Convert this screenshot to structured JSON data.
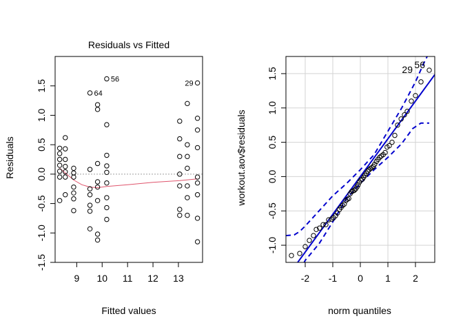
{
  "colors": {
    "points": "#000000",
    "smoother": "#DF536B",
    "zero_line": "#9E9E9E",
    "qq_line": "#0000CD",
    "qq_band": "#0000CD",
    "grid": "#D3D3D3"
  },
  "chart_data": [
    {
      "type": "scatter",
      "title": "Residuals vs Fitted",
      "xlabel": "Fitted values",
      "ylabel": "Residuals",
      "xlim": [
        8.15,
        13.95
      ],
      "ylim": [
        -1.5,
        2.0
      ],
      "x_ticks": [
        "9",
        "10",
        "11",
        "12",
        "13"
      ],
      "x_tick_values": [
        9,
        10,
        11,
        12,
        13
      ],
      "y_ticks": [
        "-1.5",
        "-1.0",
        "-0.5",
        "0.0",
        "0.5",
        "1.0",
        "1.5"
      ],
      "y_tick_values": [
        -1.5,
        -1.0,
        -0.5,
        0.0,
        0.5,
        1.0,
        1.5
      ],
      "zero_line": 0,
      "points": [
        [
          8.33,
          0.44
        ],
        [
          8.33,
          0.35
        ],
        [
          8.33,
          0.25
        ],
        [
          8.33,
          0.15
        ],
        [
          8.33,
          0.05
        ],
        [
          8.33,
          -0.05
        ],
        [
          8.33,
          -0.45
        ],
        [
          8.55,
          0.62
        ],
        [
          8.55,
          0.43
        ],
        [
          8.55,
          0.25
        ],
        [
          8.55,
          0.13
        ],
        [
          8.55,
          0.04
        ],
        [
          8.55,
          -0.05
        ],
        [
          8.55,
          -0.35
        ],
        [
          8.88,
          0.1
        ],
        [
          8.88,
          0.02
        ],
        [
          8.88,
          -0.05
        ],
        [
          8.88,
          -0.22
        ],
        [
          8.88,
          -0.32
        ],
        [
          8.88,
          -0.42
        ],
        [
          8.88,
          -0.62
        ],
        [
          9.52,
          1.38
        ],
        [
          9.52,
          0.08
        ],
        [
          9.52,
          -0.25
        ],
        [
          9.52,
          -0.35
        ],
        [
          9.52,
          -0.53
        ],
        [
          9.52,
          -0.63
        ],
        [
          9.52,
          -0.93
        ],
        [
          9.82,
          1.18
        ],
        [
          9.82,
          1.1
        ],
        [
          9.82,
          0.18
        ],
        [
          9.82,
          -0.13
        ],
        [
          9.82,
          -0.22
        ],
        [
          9.82,
          -0.45
        ],
        [
          9.82,
          -1.02
        ],
        [
          9.82,
          -1.12
        ],
        [
          10.18,
          1.62
        ],
        [
          10.18,
          0.84
        ],
        [
          10.18,
          0.32
        ],
        [
          10.18,
          0.14
        ],
        [
          10.18,
          0.03
        ],
        [
          10.18,
          -0.15
        ],
        [
          10.18,
          -0.4
        ],
        [
          10.18,
          -0.57
        ],
        [
          10.18,
          -0.77
        ],
        [
          13.05,
          0.9
        ],
        [
          13.05,
          0.6
        ],
        [
          13.05,
          0.3
        ],
        [
          13.05,
          0.0
        ],
        [
          13.05,
          -0.2
        ],
        [
          13.05,
          -0.6
        ],
        [
          13.05,
          -0.7
        ],
        [
          13.35,
          1.2
        ],
        [
          13.35,
          0.5
        ],
        [
          13.35,
          0.3
        ],
        [
          13.35,
          0.1
        ],
        [
          13.35,
          -0.2
        ],
        [
          13.35,
          -0.4
        ],
        [
          13.35,
          -0.7
        ],
        [
          13.75,
          1.55
        ],
        [
          13.75,
          0.95
        ],
        [
          13.75,
          0.75
        ],
        [
          13.75,
          0.45
        ],
        [
          13.75,
          -0.05
        ],
        [
          13.75,
          -0.15
        ],
        [
          13.75,
          -0.35
        ],
        [
          13.75,
          -0.75
        ],
        [
          13.75,
          -1.15
        ]
      ],
      "smoother": [
        [
          8.33,
          0.1
        ],
        [
          8.55,
          0.02
        ],
        [
          8.88,
          -0.1
        ],
        [
          9.2,
          -0.18
        ],
        [
          9.52,
          -0.22
        ],
        [
          9.82,
          -0.23
        ],
        [
          10.18,
          -0.21
        ],
        [
          11.0,
          -0.18
        ],
        [
          12.0,
          -0.14
        ],
        [
          13.05,
          -0.11
        ],
        [
          13.75,
          -0.08
        ]
      ],
      "annotations": [
        {
          "label": "56",
          "x": 10.18,
          "y": 1.62,
          "side": "right"
        },
        {
          "label": "64",
          "x": 9.52,
          "y": 1.38,
          "side": "right"
        },
        {
          "label": "29",
          "x": 13.75,
          "y": 1.55,
          "side": "left"
        }
      ]
    },
    {
      "type": "scatter",
      "title": "",
      "xlabel": "norm quantiles",
      "ylabel": "workout.aov$residuals",
      "xlim": [
        -2.7,
        2.7
      ],
      "ylim": [
        -1.25,
        1.75
      ],
      "x_ticks": [
        "-2",
        "-1",
        "0",
        "1",
        "2"
      ],
      "x_tick_values": [
        -2,
        -1,
        0,
        1,
        2
      ],
      "y_ticks": [
        "-1.0",
        "-0.5",
        "0.0",
        "0.5",
        "1.0",
        "1.5"
      ],
      "y_tick_values": [
        -1.0,
        -0.5,
        0.0,
        0.5,
        1.0,
        1.5
      ],
      "grid": true,
      "qq_line": {
        "slope": 0.55,
        "intercept": 0.0
      },
      "band_upper": [
        [
          -2.7,
          -0.86
        ],
        [
          -2.4,
          -0.85
        ],
        [
          -2.2,
          -0.8
        ],
        [
          -2.0,
          -0.72
        ],
        [
          -1.5,
          -0.5
        ],
        [
          -1.0,
          -0.28
        ],
        [
          -0.5,
          -0.1
        ],
        [
          0.0,
          0.1
        ],
        [
          0.5,
          0.32
        ],
        [
          1.0,
          0.66
        ],
        [
          1.5,
          1.0
        ],
        [
          2.0,
          1.38
        ],
        [
          2.3,
          1.65
        ],
        [
          2.45,
          1.77
        ]
      ],
      "band_lower": [
        [
          -2.05,
          -1.26
        ],
        [
          -2.0,
          -1.22
        ],
        [
          -1.5,
          -0.98
        ],
        [
          -1.0,
          -0.66
        ],
        [
          -0.5,
          -0.32
        ],
        [
          0.0,
          -0.1
        ],
        [
          0.5,
          0.1
        ],
        [
          1.0,
          0.28
        ],
        [
          1.5,
          0.48
        ],
        [
          1.9,
          0.7
        ],
        [
          2.2,
          0.78
        ],
        [
          2.5,
          0.78
        ]
      ],
      "points": [
        [
          -2.5,
          -1.15
        ],
        [
          -2.2,
          -1.12
        ],
        [
          -2.0,
          -1.02
        ],
        [
          -1.85,
          -0.93
        ],
        [
          -1.7,
          -0.86
        ],
        [
          -1.6,
          -0.77
        ],
        [
          -1.48,
          -0.75
        ],
        [
          -1.35,
          -0.7
        ],
        [
          -1.25,
          -0.7
        ],
        [
          -1.15,
          -0.63
        ],
        [
          -1.05,
          -0.62
        ],
        [
          -0.97,
          -0.6
        ],
        [
          -0.9,
          -0.57
        ],
        [
          -0.83,
          -0.53
        ],
        [
          -0.76,
          -0.48
        ],
        [
          -0.7,
          -0.45
        ],
        [
          -0.64,
          -0.42
        ],
        [
          -0.58,
          -0.4
        ],
        [
          -0.52,
          -0.35
        ],
        [
          -0.47,
          -0.33
        ],
        [
          -0.42,
          -0.32
        ],
        [
          -0.37,
          -0.25
        ],
        [
          -0.32,
          -0.22
        ],
        [
          -0.27,
          -0.21
        ],
        [
          -0.22,
          -0.2
        ],
        [
          -0.17,
          -0.18
        ],
        [
          -0.12,
          -0.15
        ],
        [
          -0.08,
          -0.12
        ],
        [
          -0.03,
          -0.08
        ],
        [
          0.02,
          -0.05
        ],
        [
          0.07,
          -0.04
        ],
        [
          0.12,
          -0.01
        ],
        [
          0.17,
          0.02
        ],
        [
          0.22,
          0.05
        ],
        [
          0.27,
          0.08
        ],
        [
          0.32,
          0.1
        ],
        [
          0.37,
          0.12
        ],
        [
          0.42,
          0.13
        ],
        [
          0.47,
          0.15
        ],
        [
          0.52,
          0.18
        ],
        [
          0.58,
          0.22
        ],
        [
          0.64,
          0.25
        ],
        [
          0.7,
          0.28
        ],
        [
          0.76,
          0.3
        ],
        [
          0.83,
          0.32
        ],
        [
          0.9,
          0.35
        ],
        [
          0.97,
          0.43
        ],
        [
          1.05,
          0.45
        ],
        [
          1.15,
          0.5
        ],
        [
          1.25,
          0.6
        ],
        [
          1.35,
          0.75
        ],
        [
          1.48,
          0.84
        ],
        [
          1.6,
          0.9
        ],
        [
          1.7,
          0.95
        ],
        [
          1.85,
          1.1
        ],
        [
          2.0,
          1.18
        ],
        [
          2.2,
          1.38
        ],
        [
          2.5,
          1.55
        ]
      ],
      "annotations": [
        {
          "label": "29",
          "x": 2.05,
          "y": 1.55,
          "side": "left"
        },
        {
          "label": "56",
          "x": 2.5,
          "y": 1.62,
          "side": "left"
        }
      ]
    }
  ]
}
